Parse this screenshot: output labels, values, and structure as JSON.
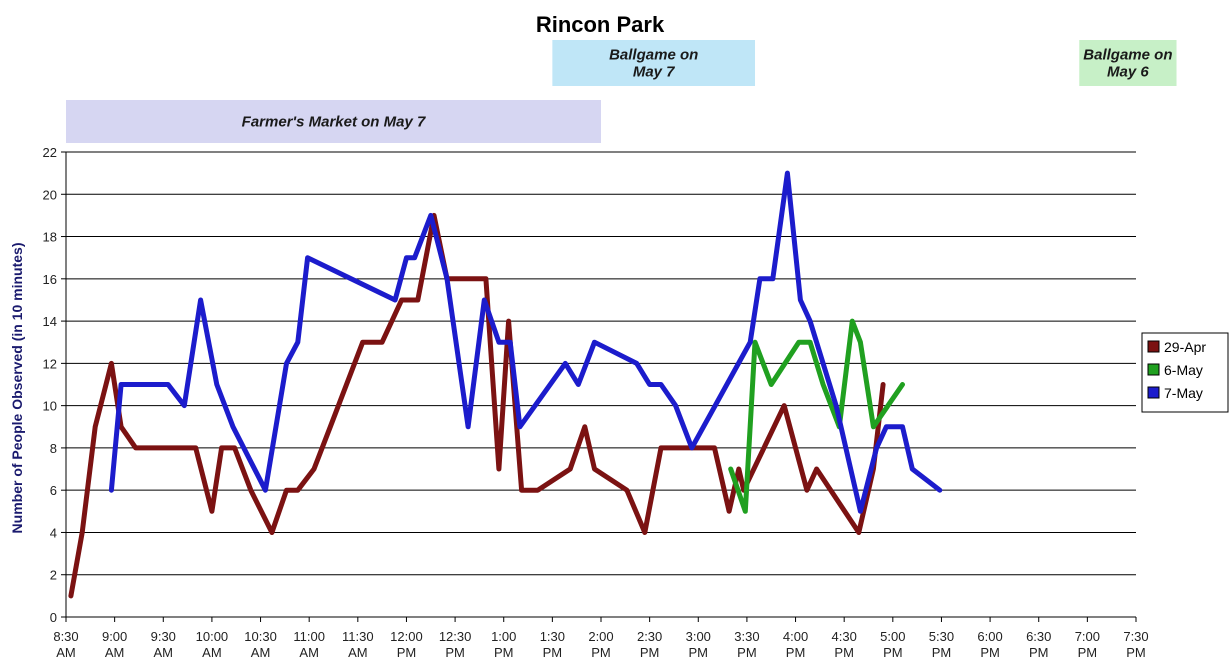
{
  "chart_data": {
    "type": "line",
    "title": "Rincon Park",
    "ylabel": "Number of People Observed (in 10 minutes)",
    "xlabel": "",
    "ylim": [
      0,
      22
    ],
    "y_ticks": [
      0,
      2,
      4,
      6,
      8,
      10,
      12,
      14,
      16,
      18,
      20,
      22
    ],
    "x_range": [
      "8:30 AM",
      "7:30 PM"
    ],
    "x_ticks": [
      {
        "time": "8:30",
        "ampm": "AM"
      },
      {
        "time": "9:00",
        "ampm": "AM"
      },
      {
        "time": "9:30",
        "ampm": "AM"
      },
      {
        "time": "10:00",
        "ampm": "AM"
      },
      {
        "time": "10:30",
        "ampm": "AM"
      },
      {
        "time": "11:00",
        "ampm": "AM"
      },
      {
        "time": "11:30",
        "ampm": "AM"
      },
      {
        "time": "12:00",
        "ampm": "PM"
      },
      {
        "time": "12:30",
        "ampm": "PM"
      },
      {
        "time": "1:00",
        "ampm": "PM"
      },
      {
        "time": "1:30",
        "ampm": "PM"
      },
      {
        "time": "2:00",
        "ampm": "PM"
      },
      {
        "time": "2:30",
        "ampm": "PM"
      },
      {
        "time": "3:00",
        "ampm": "PM"
      },
      {
        "time": "3:30",
        "ampm": "PM"
      },
      {
        "time": "4:00",
        "ampm": "PM"
      },
      {
        "time": "4:30",
        "ampm": "PM"
      },
      {
        "time": "5:00",
        "ampm": "PM"
      },
      {
        "time": "5:30",
        "ampm": "PM"
      },
      {
        "time": "6:00",
        "ampm": "PM"
      },
      {
        "time": "6:30",
        "ampm": "PM"
      },
      {
        "time": "7:00",
        "ampm": "PM"
      },
      {
        "time": "7:30",
        "ampm": "PM"
      }
    ],
    "grid": "horizontal",
    "legend_position": "right",
    "events": [
      {
        "label_lines": [
          "Farmer's Market on May 7"
        ],
        "start": "8:30 AM",
        "end": "2:00 PM",
        "color": "#d6d6f2",
        "row": "lower"
      },
      {
        "label_lines": [
          "Ballgame on",
          "May 7"
        ],
        "start": "1:30 PM",
        "end": "3:35 PM",
        "color": "#bfe6f7",
        "row": "upper"
      },
      {
        "label_lines": [
          "Ballgame on",
          "May 6"
        ],
        "start": "6:55 PM",
        "end": "7:55 PM",
        "color": "#c7f0c7",
        "row": "upper"
      }
    ],
    "series": [
      {
        "name": "29-Apr",
        "color": "#7b1212",
        "points": [
          [
            "8:33 AM",
            1
          ],
          [
            "8:40 AM",
            4
          ],
          [
            "8:48 AM",
            9
          ],
          [
            "8:58 AM",
            12
          ],
          [
            "9:04 AM",
            9
          ],
          [
            "9:13 AM",
            8
          ],
          [
            "9:23 AM",
            8
          ],
          [
            "9:43 AM",
            8
          ],
          [
            "9:50 AM",
            8
          ],
          [
            "10:00 AM",
            5
          ],
          [
            "10:06 AM",
            8
          ],
          [
            "10:14 AM",
            8
          ],
          [
            "10:24 AM",
            6
          ],
          [
            "10:37 AM",
            4
          ],
          [
            "10:46 AM",
            6
          ],
          [
            "10:53 AM",
            6
          ],
          [
            "11:03 AM",
            7
          ],
          [
            "11:13 AM",
            9
          ],
          [
            "11:23 AM",
            11
          ],
          [
            "11:33 AM",
            13
          ],
          [
            "11:45 AM",
            13
          ],
          [
            "11:57 AM",
            15
          ],
          [
            "12:07 PM",
            15
          ],
          [
            "12:17 PM",
            19
          ],
          [
            "12:25 PM",
            16
          ],
          [
            "12:37 PM",
            16
          ],
          [
            "12:49 PM",
            16
          ],
          [
            "12:57 PM",
            7
          ],
          [
            "1:03 PM",
            14
          ],
          [
            "1:11 PM",
            6
          ],
          [
            "1:21 PM",
            6
          ],
          [
            "1:41 PM",
            7
          ],
          [
            "1:50 PM",
            9
          ],
          [
            "1:56 PM",
            7
          ],
          [
            "2:16 PM",
            6
          ],
          [
            "2:27 PM",
            4
          ],
          [
            "2:37 PM",
            8
          ],
          [
            "2:57 PM",
            8
          ],
          [
            "3:10 PM",
            8
          ],
          [
            "3:19 PM",
            5
          ],
          [
            "3:25 PM",
            7
          ],
          [
            "3:28 PM",
            6
          ],
          [
            "3:53 PM",
            10
          ],
          [
            "4:07 PM",
            6
          ],
          [
            "4:13 PM",
            7
          ],
          [
            "4:39 PM",
            4
          ],
          [
            "4:48 PM",
            7
          ],
          [
            "4:54 PM",
            11
          ]
        ]
      },
      {
        "name": "6-May",
        "color": "#20a020",
        "points": [
          [
            "3:20 PM",
            7
          ],
          [
            "3:29 PM",
            5
          ],
          [
            "3:35 PM",
            13
          ],
          [
            "3:45 PM",
            11
          ],
          [
            "4:02 PM",
            13
          ],
          [
            "4:09 PM",
            13
          ],
          [
            "4:17 PM",
            11
          ],
          [
            "4:27 PM",
            9
          ],
          [
            "4:35 PM",
            14
          ],
          [
            "4:40 PM",
            13
          ],
          [
            "4:48 PM",
            9
          ],
          [
            "5:06 PM",
            11
          ]
        ]
      },
      {
        "name": "7-May",
        "color": "#1c1ccc",
        "points": [
          [
            "8:58 AM",
            6
          ],
          [
            "9:04 AM",
            11
          ],
          [
            "9:13 AM",
            11
          ],
          [
            "9:23 AM",
            11
          ],
          [
            "9:33 AM",
            11
          ],
          [
            "9:43 AM",
            10
          ],
          [
            "9:53 AM",
            15
          ],
          [
            "10:03 AM",
            11
          ],
          [
            "10:13 AM",
            9
          ],
          [
            "10:33 AM",
            6
          ],
          [
            "10:46 AM",
            12
          ],
          [
            "10:53 AM",
            13
          ],
          [
            "10:59 AM",
            17
          ],
          [
            "11:53 AM",
            15
          ],
          [
            "12:00 PM",
            17
          ],
          [
            "12:05 PM",
            17
          ],
          [
            "12:15 PM",
            19
          ],
          [
            "12:25 PM",
            16
          ],
          [
            "12:38 PM",
            9
          ],
          [
            "12:48 PM",
            15
          ],
          [
            "12:57 PM",
            13
          ],
          [
            "1:04 PM",
            13
          ],
          [
            "1:10 PM",
            9
          ],
          [
            "1:38 PM",
            12
          ],
          [
            "1:46 PM",
            11
          ],
          [
            "1:56 PM",
            13
          ],
          [
            "2:22 PM",
            12
          ],
          [
            "2:30 PM",
            11
          ],
          [
            "2:37 PM",
            11
          ],
          [
            "2:46 PM",
            10
          ],
          [
            "2:56 PM",
            8
          ],
          [
            "3:32 PM",
            13
          ],
          [
            "3:38 PM",
            16
          ],
          [
            "3:46 PM",
            16
          ],
          [
            "3:55 PM",
            21
          ],
          [
            "4:03 PM",
            15
          ],
          [
            "4:09 PM",
            14
          ],
          [
            "4:25 PM",
            10
          ],
          [
            "4:40 PM",
            5
          ],
          [
            "4:50 PM",
            8
          ],
          [
            "4:56 PM",
            9
          ],
          [
            "5:06 PM",
            9
          ],
          [
            "5:12 PM",
            7
          ],
          [
            "5:29 PM",
            6
          ]
        ]
      }
    ]
  }
}
